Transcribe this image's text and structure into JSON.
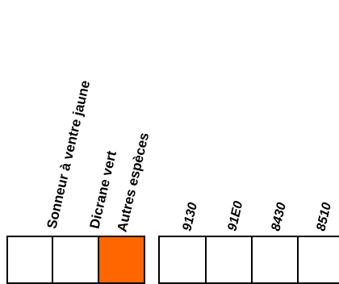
{
  "species": {
    "labels": [
      "Sonneur à ventre jaune",
      "Dicrane vert",
      "Autres espèces"
    ],
    "fill_colors": [
      "#ffffff",
      "#ffffff",
      "#ff6600"
    ]
  },
  "habitats": {
    "labels": [
      "9130",
      "91E0",
      "8430",
      "8510"
    ],
    "fill_colors": [
      "#ffffff",
      "#ffffff",
      "#ffffff",
      "#ffffff"
    ]
  }
}
